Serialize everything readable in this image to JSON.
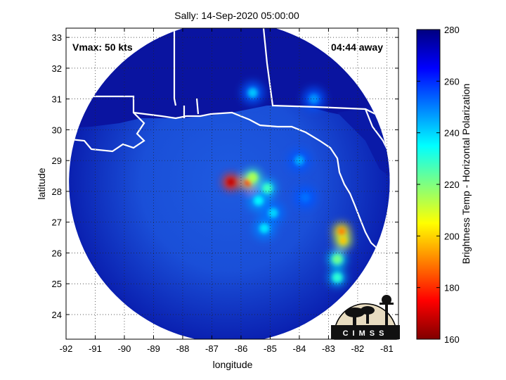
{
  "chart_data": {
    "type": "heatmap",
    "title": "Sally: 14-Sep-2020 05:00:00",
    "xlabel": "longitude",
    "ylabel": "latitude",
    "xlim": [
      -92,
      -80.6
    ],
    "ylim": [
      23.2,
      33.3
    ],
    "x_ticks": [
      -92,
      -91,
      -90,
      -89,
      -88,
      -87,
      -86,
      -85,
      -84,
      -83,
      -82,
      -81
    ],
    "y_ticks": [
      24,
      25,
      26,
      27,
      28,
      29,
      30,
      31,
      32,
      33
    ],
    "grid": true,
    "annotations": {
      "vmax": "Vmax: 50 kts",
      "away": "04:44 away"
    },
    "swath": {
      "center": [
        -86.4,
        28.3
      ],
      "radius_deg": 5.5
    },
    "colorbar": {
      "label": "Brightness Temp - Horizontal Polarization",
      "min": 160,
      "max": 280,
      "ticks": [
        160,
        180,
        200,
        220,
        240,
        260,
        280
      ]
    },
    "features": [
      {
        "lon": -86.35,
        "lat": 28.3,
        "value": 168
      },
      {
        "lon": -85.75,
        "lat": 28.3,
        "value": 180
      },
      {
        "lon": -85.6,
        "lat": 28.45,
        "value": 215
      },
      {
        "lon": -85.1,
        "lat": 28.1,
        "value": 228
      },
      {
        "lon": -85.4,
        "lat": 27.7,
        "value": 236
      },
      {
        "lon": -84.9,
        "lat": 27.3,
        "value": 240
      },
      {
        "lon": -85.2,
        "lat": 26.8,
        "value": 238
      },
      {
        "lon": -82.55,
        "lat": 26.7,
        "value": 190
      },
      {
        "lon": -82.5,
        "lat": 26.4,
        "value": 198
      },
      {
        "lon": -82.7,
        "lat": 25.8,
        "value": 222
      },
      {
        "lon": -82.7,
        "lat": 25.2,
        "value": 230
      },
      {
        "lon": -85.6,
        "lat": 31.2,
        "value": 242
      },
      {
        "lon": -83.5,
        "lat": 31.0,
        "value": 248
      },
      {
        "lon": -84.0,
        "lat": 29.0,
        "value": 245
      },
      {
        "lon": -83.8,
        "lat": 27.8,
        "value": 252
      }
    ]
  },
  "logo": {
    "text": "CIMSS"
  }
}
